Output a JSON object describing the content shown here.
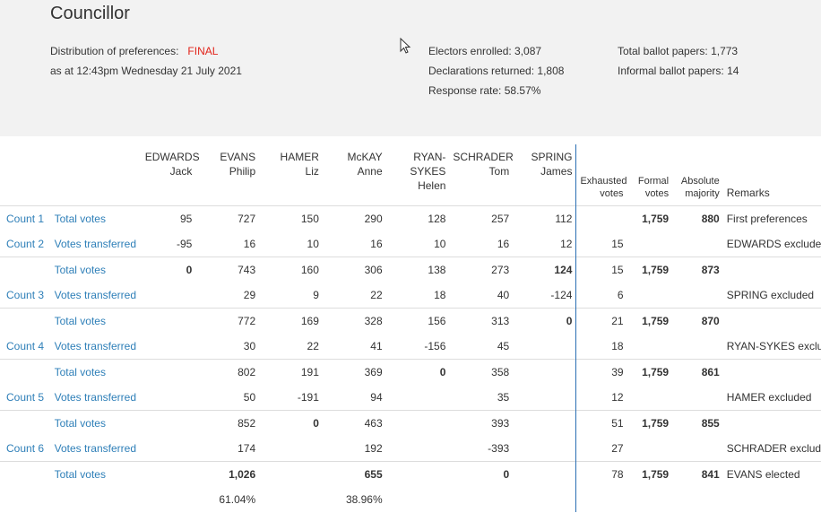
{
  "header": {
    "title": "Councillor",
    "distribution_label": "Distribution of preferences:",
    "status": "FINAL",
    "as_at": "as at 12:43pm Wednesday 21 July 2021",
    "electors_enrolled": "Electors enrolled: 3,087",
    "declarations_returned": "Declarations returned: 1,808",
    "response_rate": "Response rate: 58.57%",
    "total_ballot_papers": "Total ballot papers: 1,773",
    "informal_ballot_papers": "Informal ballot papers: 14"
  },
  "columns": {
    "candidates": [
      {
        "surname": "EDWARDS",
        "given": "Jack"
      },
      {
        "surname": "EVANS",
        "given": "Philip"
      },
      {
        "surname": "HAMER",
        "given": "Liz"
      },
      {
        "surname": "McKAY",
        "given": "Anne"
      },
      {
        "surname": "RYAN-SYKES",
        "surname_line1": "RYAN-",
        "surname_line2": "SYKES",
        "given": "Helen"
      },
      {
        "surname": "SCHRADER",
        "given": "Tom"
      },
      {
        "surname": "SPRING",
        "given": "James"
      }
    ],
    "exhausted_1": "Exhausted",
    "exhausted_2": "votes",
    "formal_1": "Formal",
    "formal_2": "votes",
    "absolute_1": "Absolute",
    "absolute_2": "majority",
    "remarks": "Remarks"
  },
  "rows": [
    {
      "count": "Count 1",
      "type": "Total votes",
      "cells": [
        "95",
        "727",
        "150",
        "290",
        "128",
        "257",
        "112"
      ],
      "exhausted": "",
      "formal": "1,759",
      "majority": "880",
      "remarks": "First preferences",
      "bold": [],
      "sep": true
    },
    {
      "count": "Count 2",
      "type": "Votes transferred",
      "cells": [
        "-95",
        "16",
        "10",
        "16",
        "10",
        "16",
        "12"
      ],
      "exhausted": "15",
      "formal": "",
      "majority": "",
      "remarks": "EDWARDS excluded",
      "bold": [],
      "sep": false
    },
    {
      "count": "",
      "type": "Total votes",
      "cells": [
        "0",
        "743",
        "160",
        "306",
        "138",
        "273",
        "124"
      ],
      "exhausted": "15",
      "formal": "1,759",
      "majority": "873",
      "remarks": "",
      "bold": [
        0,
        6
      ],
      "sep": true
    },
    {
      "count": "Count 3",
      "type": "Votes transferred",
      "cells": [
        "",
        "29",
        "9",
        "22",
        "18",
        "40",
        "-124"
      ],
      "exhausted": "6",
      "formal": "",
      "majority": "",
      "remarks": "SPRING excluded",
      "bold": [],
      "sep": false
    },
    {
      "count": "",
      "type": "Total votes",
      "cells": [
        "",
        "772",
        "169",
        "328",
        "156",
        "313",
        "0"
      ],
      "exhausted": "21",
      "formal": "1,759",
      "majority": "870",
      "remarks": "",
      "bold": [
        6
      ],
      "sep": true
    },
    {
      "count": "Count 4",
      "type": "Votes transferred",
      "cells": [
        "",
        "30",
        "22",
        "41",
        "-156",
        "45",
        ""
      ],
      "exhausted": "18",
      "formal": "",
      "majority": "",
      "remarks": "RYAN-SYKES excluded",
      "bold": [],
      "sep": false
    },
    {
      "count": "",
      "type": "Total votes",
      "cells": [
        "",
        "802",
        "191",
        "369",
        "0",
        "358",
        ""
      ],
      "exhausted": "39",
      "formal": "1,759",
      "majority": "861",
      "remarks": "",
      "bold": [
        4
      ],
      "sep": true
    },
    {
      "count": "Count 5",
      "type": "Votes transferred",
      "cells": [
        "",
        "50",
        "-191",
        "94",
        "",
        "35",
        ""
      ],
      "exhausted": "12",
      "formal": "",
      "majority": "",
      "remarks": "HAMER excluded",
      "bold": [],
      "sep": false
    },
    {
      "count": "",
      "type": "Total votes",
      "cells": [
        "",
        "852",
        "0",
        "463",
        "",
        "393",
        ""
      ],
      "exhausted": "51",
      "formal": "1,759",
      "majority": "855",
      "remarks": "",
      "bold": [
        2
      ],
      "sep": true
    },
    {
      "count": "Count 6",
      "type": "Votes transferred",
      "cells": [
        "",
        "174",
        "",
        "192",
        "",
        "-393",
        ""
      ],
      "exhausted": "27",
      "formal": "",
      "majority": "",
      "remarks": "SCHRADER excluded",
      "bold": [],
      "sep": false
    },
    {
      "count": "",
      "type": "Total votes",
      "cells": [
        "",
        "1,026",
        "",
        "655",
        "",
        "0",
        ""
      ],
      "exhausted": "78",
      "formal": "1,759",
      "majority": "841",
      "remarks": "EVANS elected",
      "bold": [
        1,
        3,
        5
      ],
      "sep": true
    },
    {
      "count": "",
      "type": "",
      "cells": [
        "",
        "61.04%",
        "",
        "38.96%",
        "",
        "",
        ""
      ],
      "exhausted": "",
      "formal": "",
      "majority": "",
      "remarks": "",
      "bold": [],
      "sep": false
    }
  ],
  "colors": {
    "link": "#2e7fb8",
    "final": "#e2231a",
    "divider": "#2b6fb3",
    "header_bg": "#f2f2f2"
  }
}
